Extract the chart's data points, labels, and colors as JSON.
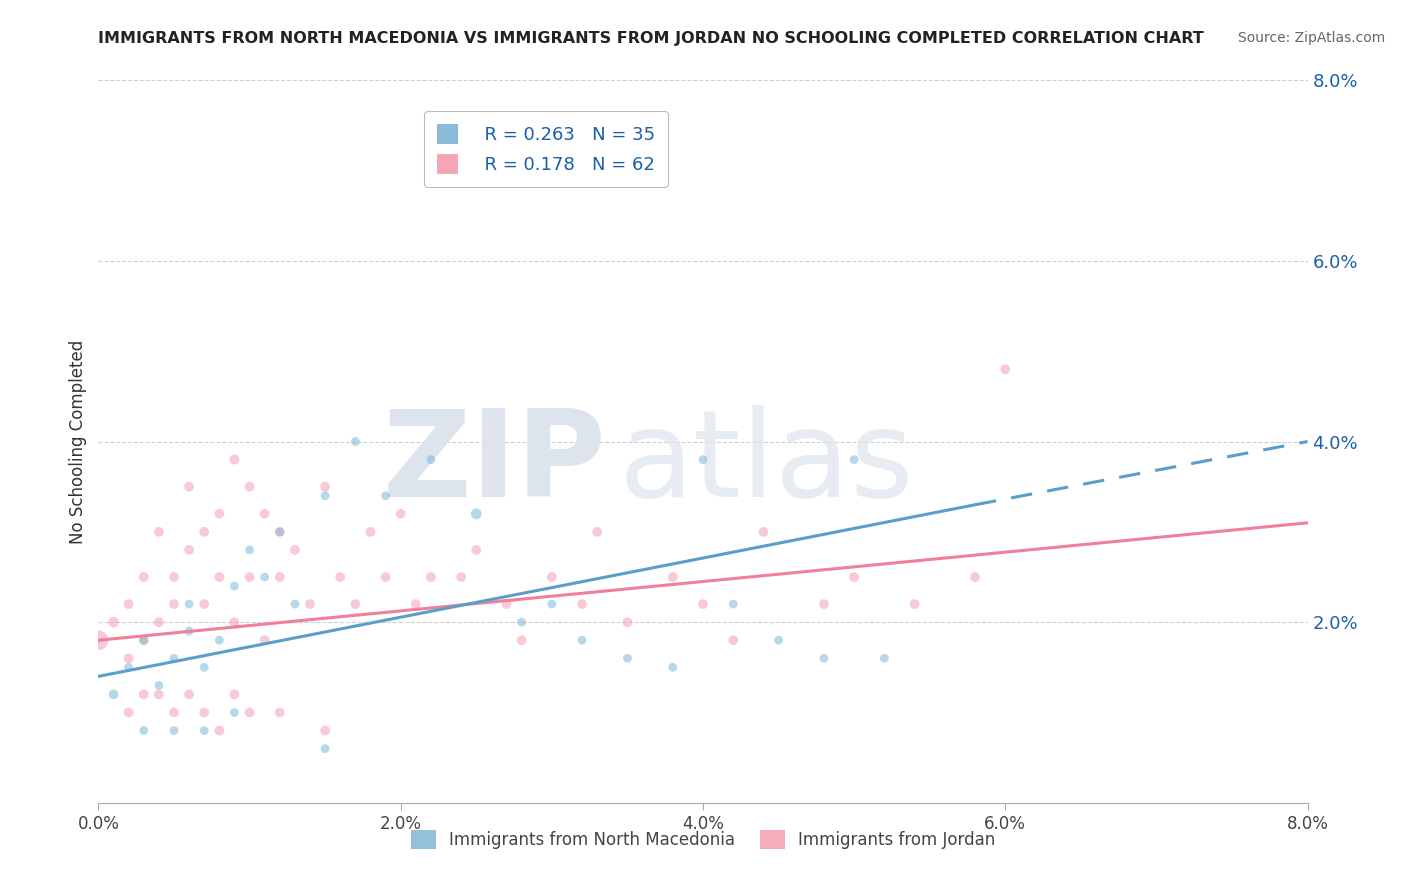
{
  "title": "IMMIGRANTS FROM NORTH MACEDONIA VS IMMIGRANTS FROM JORDAN NO SCHOOLING COMPLETED CORRELATION CHART",
  "source": "Source: ZipAtlas.com",
  "ylabel": "No Schooling Completed",
  "xlim": [
    0.0,
    0.08
  ],
  "ylim": [
    0.0,
    0.08
  ],
  "xticks": [
    0.0,
    0.02,
    0.04,
    0.06,
    0.08
  ],
  "yticks": [
    0.0,
    0.02,
    0.04,
    0.06,
    0.08
  ],
  "xtick_labels": [
    "0.0%",
    "2.0%",
    "4.0%",
    "6.0%",
    "8.0%"
  ],
  "ytick_labels_right": [
    "",
    "2.0%",
    "4.0%",
    "6.0%",
    "8.0%"
  ],
  "series": [
    {
      "name": "Immigrants from North Macedonia",
      "color": "#7ab8d9",
      "R": 0.263,
      "N": 35,
      "x": [
        0.001,
        0.002,
        0.003,
        0.004,
        0.005,
        0.006,
        0.006,
        0.007,
        0.008,
        0.009,
        0.01,
        0.011,
        0.012,
        0.013,
        0.015,
        0.017,
        0.019,
        0.022,
        0.025,
        0.028,
        0.03,
        0.032,
        0.035,
        0.038,
        0.04,
        0.042,
        0.045,
        0.048,
        0.05,
        0.052,
        0.003,
        0.005,
        0.007,
        0.009,
        0.015
      ],
      "y": [
        0.012,
        0.015,
        0.018,
        0.013,
        0.016,
        0.019,
        0.022,
        0.015,
        0.018,
        0.024,
        0.028,
        0.025,
        0.03,
        0.022,
        0.034,
        0.04,
        0.034,
        0.038,
        0.032,
        0.02,
        0.022,
        0.018,
        0.016,
        0.015,
        0.038,
        0.022,
        0.018,
        0.016,
        0.038,
        0.016,
        0.008,
        0.008,
        0.008,
        0.01,
        0.006
      ],
      "sizes": [
        50,
        40,
        40,
        40,
        40,
        40,
        40,
        40,
        40,
        40,
        40,
        40,
        40,
        40,
        40,
        40,
        40,
        40,
        60,
        40,
        40,
        40,
        40,
        40,
        40,
        40,
        40,
        40,
        40,
        40,
        40,
        40,
        40,
        40,
        40
      ]
    },
    {
      "name": "Immigrants from Jordan",
      "color": "#f4a0b8",
      "R": 0.178,
      "N": 62,
      "x": [
        0.0,
        0.001,
        0.002,
        0.002,
        0.003,
        0.003,
        0.004,
        0.004,
        0.005,
        0.005,
        0.006,
        0.006,
        0.007,
        0.007,
        0.008,
        0.008,
        0.009,
        0.009,
        0.01,
        0.01,
        0.011,
        0.011,
        0.012,
        0.012,
        0.013,
        0.014,
        0.015,
        0.016,
        0.017,
        0.018,
        0.019,
        0.02,
        0.021,
        0.022,
        0.024,
        0.025,
        0.027,
        0.028,
        0.03,
        0.032,
        0.033,
        0.035,
        0.038,
        0.04,
        0.042,
        0.044,
        0.048,
        0.05,
        0.054,
        0.058,
        0.06,
        0.002,
        0.003,
        0.004,
        0.005,
        0.006,
        0.007,
        0.008,
        0.009,
        0.01,
        0.012,
        0.015
      ],
      "y": [
        0.018,
        0.02,
        0.022,
        0.016,
        0.025,
        0.018,
        0.02,
        0.03,
        0.022,
        0.025,
        0.028,
        0.035,
        0.03,
        0.022,
        0.032,
        0.025,
        0.038,
        0.02,
        0.035,
        0.025,
        0.032,
        0.018,
        0.03,
        0.025,
        0.028,
        0.022,
        0.035,
        0.025,
        0.022,
        0.03,
        0.025,
        0.032,
        0.022,
        0.025,
        0.025,
        0.028,
        0.022,
        0.018,
        0.025,
        0.022,
        0.03,
        0.02,
        0.025,
        0.022,
        0.018,
        0.03,
        0.022,
        0.025,
        0.022,
        0.025,
        0.048,
        0.01,
        0.012,
        0.012,
        0.01,
        0.012,
        0.01,
        0.008,
        0.012,
        0.01,
        0.01,
        0.008
      ],
      "sizes": [
        200,
        60,
        50,
        50,
        50,
        50,
        50,
        50,
        50,
        50,
        50,
        50,
        50,
        50,
        50,
        50,
        50,
        50,
        50,
        50,
        50,
        50,
        50,
        50,
        50,
        50,
        50,
        50,
        50,
        50,
        50,
        50,
        50,
        50,
        50,
        50,
        50,
        50,
        50,
        50,
        50,
        50,
        50,
        50,
        50,
        50,
        50,
        50,
        50,
        50,
        50,
        50,
        50,
        50,
        50,
        50,
        50,
        50,
        50,
        50,
        50,
        50
      ]
    }
  ],
  "trendline_blue": {
    "x_start": 0.0,
    "x_solid_end": 0.058,
    "x_dash_end": 0.08,
    "y_start": 0.014,
    "y_solid_end": 0.033,
    "y_dash_end": 0.04
  },
  "trendline_pink": {
    "x_start": 0.0,
    "x_end": 0.08,
    "y_start": 0.018,
    "y_end": 0.031
  },
  "grid_color": "#d0d0d0",
  "background_color": "#ffffff",
  "watermark_zip": "ZIP",
  "watermark_atlas": "atlas",
  "watermark_color": "#dde4ee",
  "blue_color": "#5b9ec9",
  "pink_color": "#f08099",
  "R_N_color": "#1a5fa8",
  "title_color": "#222222"
}
